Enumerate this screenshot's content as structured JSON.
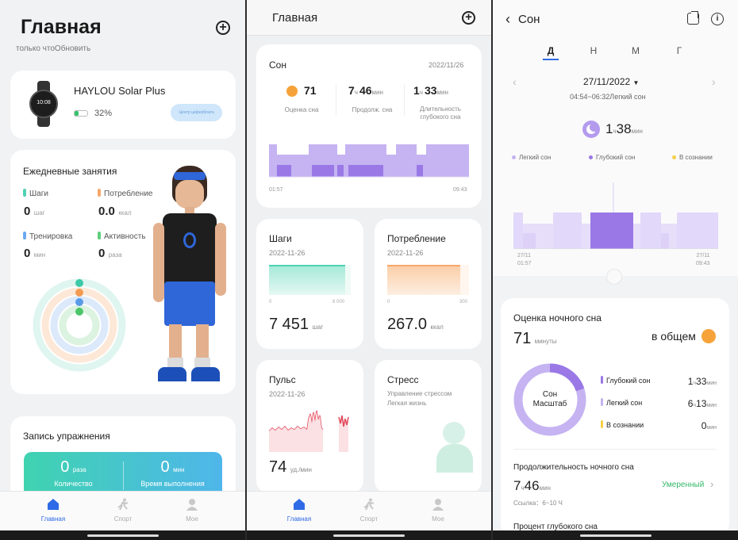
{
  "s1": {
    "title": "Главная",
    "subtitle": "только чтоОбновить",
    "device": {
      "name": "HAYLOU Solar Plus",
      "battery": "32%",
      "watch_time": "10:08",
      "button": "Центр циферблата"
    },
    "daily": {
      "title": "Ежедневные занятия",
      "steps_label": "Шаги",
      "steps_value": "0",
      "steps_unit": "шаг",
      "cal_label": "Потребление",
      "cal_value": "0.0",
      "cal_unit": "ккал",
      "train_label": "Тренировка",
      "train_value": "0",
      "train_unit": "мин",
      "act_label": "Активность",
      "act_value": "0",
      "act_unit": "раза"
    },
    "workout": {
      "title": "Запись упражнения",
      "count_value": "0",
      "count_unit": "раза",
      "count_label": "Количество",
      "time_value": "0",
      "time_unit": "мин",
      "time_label": "Время выполнения"
    },
    "tabs": {
      "home": "Главная",
      "sport": "Спорт",
      "me": "Мое"
    }
  },
  "s2": {
    "title": "Главная",
    "sleep": {
      "title": "Сон",
      "date": "2022/11/26",
      "score_value": "71",
      "score_label": "Оценка сна",
      "dur_h": "7",
      "dur_h_unit": "ч",
      "dur_m": "46",
      "dur_m_unit": "мин",
      "dur_label": "Продолж. сна",
      "deep_h": "1",
      "deep_h_unit": "ч",
      "deep_m": "33",
      "deep_m_unit": "мин",
      "deep_label": "Длительность глубокого сна",
      "start": "01:57",
      "end": "09:43"
    },
    "steps": {
      "title": "Шаги",
      "date": "2022-11-26",
      "axis_min": "0",
      "axis_max": "8 000",
      "value": "7 451",
      "unit": "шаг",
      "fraction": 0.93
    },
    "calories": {
      "title": "Потребление",
      "date": "2022-11-26",
      "axis_min": "0",
      "axis_max": "300",
      "value": "267.0",
      "unit": "ккал",
      "fraction": 0.89
    },
    "pulse": {
      "title": "Пульс",
      "date": "2022-11-26",
      "value": "74",
      "unit": "уд./мин"
    },
    "stress": {
      "title": "Стресс",
      "desc1": "Управление стрессом",
      "desc2": "Легкая жизнь"
    },
    "tabs": {
      "home": "Главная",
      "sport": "Спорт",
      "me": "Мое"
    }
  },
  "s3": {
    "title": "Сон",
    "periods": [
      "Д",
      "Н",
      "М",
      "Г"
    ],
    "date": "27/11/2022",
    "range": "04:54~06:32Легкий сон",
    "seg_h": "1",
    "seg_h_unit": "ч",
    "seg_m": "38",
    "seg_m_unit": "мин",
    "legend": {
      "light": "Легкий сон",
      "deep": "Глубокий сон",
      "awake": "В сознании"
    },
    "axis": {
      "start_date": "27/11",
      "start_time": "01:57",
      "end_date": "27/11",
      "end_time": "09:43"
    },
    "score": {
      "title": "Оценка ночного сна",
      "value": "71",
      "unit": "минуты",
      "overall": "в общем",
      "ring_line1": "Сон",
      "ring_line2": "Масштаб",
      "deep_label": "Глубокий сон",
      "deep_h": "1",
      "deep_m": "33",
      "light_label": "Легкий сон",
      "light_h": "6",
      "light_m": "13",
      "awake_label": "В сознании",
      "awake_m": "0",
      "h_unit": "ч",
      "m_unit": "мин"
    },
    "duration": {
      "title": "Продолжительность ночного сна",
      "h": "7",
      "h_unit": "ч",
      "m": "46",
      "m_unit": "мин",
      "status": "Умеренный",
      "ref": "Ссылка：6~10 Ч"
    },
    "deep_pct_title": "Процент глубокого сна"
  },
  "colors": {
    "light_sleep": "#c5b3f2",
    "deep_sleep": "#9a79e6",
    "awake": "#f5cf4a",
    "steps": "#4fd1b4",
    "calories": "#f7a76a",
    "pulse": "#e2475a",
    "accent": "#2f6be6",
    "green": "#35b86a"
  }
}
